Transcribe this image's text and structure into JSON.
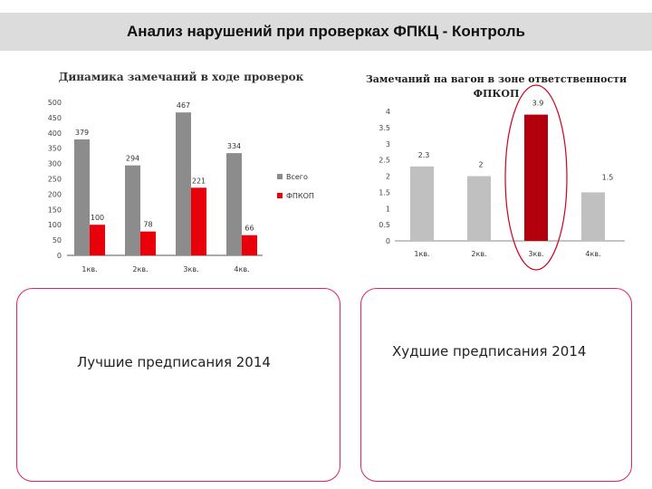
{
  "header": {
    "title": "Анализ нарушений при проверках ФПКЦ - Контроль"
  },
  "chart_data": [
    {
      "type": "bar",
      "title": "Динамика замечаний в ходе проверок",
      "categories": [
        "1кв.",
        "2кв.",
        "3кв.",
        "4кв."
      ],
      "series": [
        {
          "name": "Всего",
          "values": [
            379,
            294,
            467,
            334
          ],
          "color": "#8c8c8c"
        },
        {
          "name": "ФПКОП",
          "values": [
            100,
            78,
            221,
            66
          ],
          "color": "#e8000b"
        }
      ],
      "yticks": [
        0,
        50,
        100,
        150,
        200,
        250,
        300,
        350,
        400,
        450,
        500
      ],
      "ylim": [
        0,
        500
      ],
      "legend": "right"
    },
    {
      "type": "bar",
      "title": "Замечаний на вагон в зоне ответственности ФПКОП",
      "categories": [
        "1кв.",
        "2кв.",
        "3кв.",
        "4кв."
      ],
      "values": [
        2.3,
        2,
        3.9,
        1.5
      ],
      "colors": [
        "#c0c0c0",
        "#c0c0c0",
        "#b2000c",
        "#c0c0c0"
      ],
      "value_labels": [
        "2.3",
        "2",
        "3.9",
        "1.5"
      ],
      "yticks": [
        0,
        0.5,
        1,
        1.5,
        2,
        2.5,
        3,
        3.5,
        4
      ],
      "ylim": [
        0,
        4
      ],
      "highlight": "3кв."
    }
  ],
  "boxes": {
    "best": "Лучшие предписания 2014",
    "worst": "Худшие предписания 2014"
  }
}
